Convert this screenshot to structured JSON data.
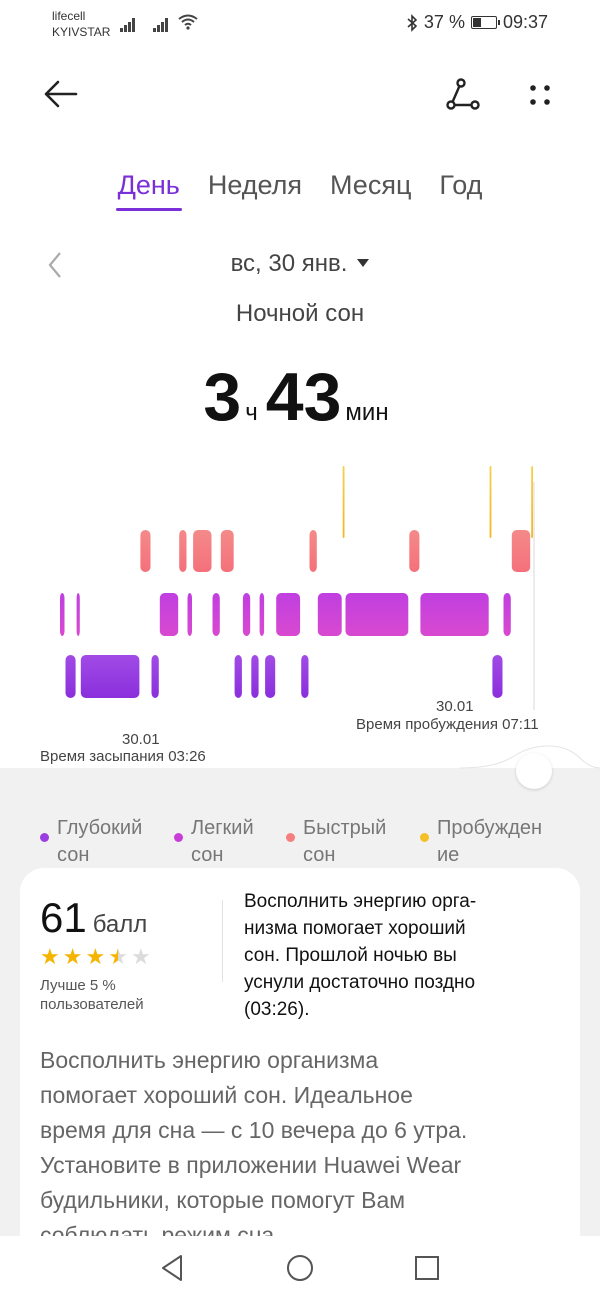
{
  "status_bar": {
    "carrier_1": "lifecell",
    "carrier_2": "KYIVSTAR",
    "battery_text": "37 %",
    "battery_level": 0.37,
    "time": "09:37"
  },
  "header": {
    "back_icon": "arrow-left-icon",
    "share_icon": "share-path-icon",
    "more_icon": "more-dots-icon"
  },
  "tabs": [
    {
      "label": "День",
      "active": true
    },
    {
      "label": "Неделя",
      "active": false
    },
    {
      "label": "Месяц",
      "active": false
    },
    {
      "label": "Год",
      "active": false
    }
  ],
  "date_selector": {
    "label": "вс, 30 янв."
  },
  "sleep_title": "Ночной сон",
  "duration": {
    "hours": "3",
    "hours_unit": "ч",
    "minutes": "43",
    "minutes_unit": "мин"
  },
  "chart_data": {
    "type": "bar",
    "title": "",
    "stage_levels": [
      "Пробуждение",
      "Быстрый сон",
      "Легкий сон",
      "Глубокий сон"
    ],
    "segments_note": "",
    "segments": [
      {
        "stage": "light",
        "start": 0.0,
        "end": 0.02
      },
      {
        "stage": "deep",
        "start": 0.02,
        "end": 0.06
      },
      {
        "stage": "light",
        "start": 0.06,
        "end": 0.075
      },
      {
        "stage": "deep",
        "start": 0.075,
        "end": 0.29
      },
      {
        "stage": "rem",
        "start": 0.29,
        "end": 0.33
      },
      {
        "stage": "deep",
        "start": 0.33,
        "end": 0.36
      },
      {
        "stage": "light",
        "start": 0.36,
        "end": 0.43
      },
      {
        "stage": "rem",
        "start": 0.43,
        "end": 0.46
      },
      {
        "stage": "light",
        "start": 0.46,
        "end": 0.48
      },
      {
        "stage": "rem",
        "start": 0.48,
        "end": 0.55
      },
      {
        "stage": "light",
        "start": 0.55,
        "end": 0.58
      },
      {
        "stage": "rem",
        "start": 0.58,
        "end": 0.63
      },
      {
        "stage": "deep",
        "start": 0.63,
        "end": 0.66
      },
      {
        "stage": "light",
        "start": 0.66,
        "end": 0.69
      },
      {
        "stage": "deep",
        "start": 0.69,
        "end": 0.72
      },
      {
        "stage": "light",
        "start": 0.72,
        "end": 0.74
      },
      {
        "stage": "deep",
        "start": 0.74,
        "end": 0.78
      },
      {
        "stage": "light",
        "start": 0.78,
        "end": 0.87
      },
      {
        "stage": "deep",
        "start": 0.87,
        "end": 0.9
      },
      {
        "stage": "rem",
        "start": 0.9,
        "end": 0.93
      },
      {
        "stage": "light",
        "start": 0.93,
        "end": 1.02
      },
      {
        "stage": "awake",
        "start": 1.02,
        "end": 1.03
      },
      {
        "stage": "light",
        "start": 1.03,
        "end": 1.26
      },
      {
        "stage": "rem",
        "start": 1.26,
        "end": 1.3
      },
      {
        "stage": "light",
        "start": 1.3,
        "end": 1.55
      },
      {
        "stage": "awake",
        "start": 1.55,
        "end": 1.56
      },
      {
        "stage": "deep",
        "start": 1.56,
        "end": 1.6
      },
      {
        "stage": "light",
        "start": 1.6,
        "end": 1.63
      },
      {
        "stage": "rem",
        "start": 1.63,
        "end": 1.7
      },
      {
        "stage": "awake",
        "start": 1.7,
        "end": 1.71
      }
    ],
    "start_date": "30.01",
    "start_label": "Время засыпания 03:26",
    "end_date": "30.01",
    "end_label": "Время пробуждения 07:11"
  },
  "legend": [
    {
      "label_1": "Глубокий",
      "label_2": "сон",
      "color": "#9b3de0"
    },
    {
      "label_1": "Легкий",
      "label_2": "сон",
      "color": "#c83cd8"
    },
    {
      "label_1": "Быстрый",
      "label_2": "сон",
      "color": "#f57f7f"
    },
    {
      "label_1": "Пробужден",
      "label_2": "ие",
      "color": "#f5c026"
    }
  ],
  "score_card": {
    "score": "61",
    "score_unit": "балл",
    "stars_value": 3.5,
    "stars_max": 5,
    "better_line_1": "Лучше 5 %",
    "better_line_2": "пользователей",
    "summary_lines": [
      "Восполнить энергию орга-",
      "низма помогает хороший",
      "сон. Прошлой ночью вы",
      "уснули достаточно поздно",
      "(03:26)."
    ],
    "advice_lines": [
      "Восполнить энергию организма",
      "помогает хороший сон. Идеальное",
      "время для сна — с 10 вечера до 6 утра.",
      "Установите в приложении Huawei Wear",
      "будильники, которые помогут Вам",
      "соблюдать режим сна."
    ]
  },
  "nav_bar": {
    "back_icon": "triangle-back-icon",
    "home_icon": "circle-home-icon",
    "recents_icon": "square-recents-icon"
  }
}
